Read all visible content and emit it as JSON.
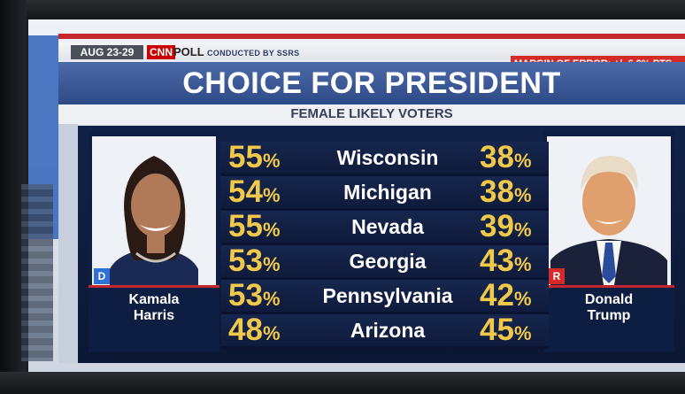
{
  "header": {
    "date": "AUG 23-29",
    "network": "CNN",
    "poll_label": "POLL",
    "conducted_by": "CONDUCTED BY SSRS",
    "margin_of_error": "MARGIN OF ERROR: +/- 6.9% PTS",
    "title": "CHOICE FOR PRESIDENT",
    "subtitle": "FEMALE LIKELY VOTERS"
  },
  "candidates": {
    "left": {
      "party": "D",
      "first": "Kamala",
      "last": "Harris",
      "party_color": "#2f6fd6"
    },
    "right": {
      "party": "R",
      "first": "Donald",
      "last": "Trump",
      "party_color": "#d52a2a"
    }
  },
  "colors": {
    "accent_gold": "#f0c84a",
    "panel_navy": "#0f1b3c",
    "title_blue": "#3a5898"
  },
  "results": [
    {
      "state": "Wisconsin",
      "harris": 55,
      "trump": 38
    },
    {
      "state": "Michigan",
      "harris": 54,
      "trump": 38
    },
    {
      "state": "Nevada",
      "harris": 55,
      "trump": 39
    },
    {
      "state": "Georgia",
      "harris": 53,
      "trump": 43
    },
    {
      "state": "Pennsylvania",
      "harris": 53,
      "trump": 42
    },
    {
      "state": "Arizona",
      "harris": 48,
      "trump": 45
    }
  ],
  "percent_sign": "%"
}
